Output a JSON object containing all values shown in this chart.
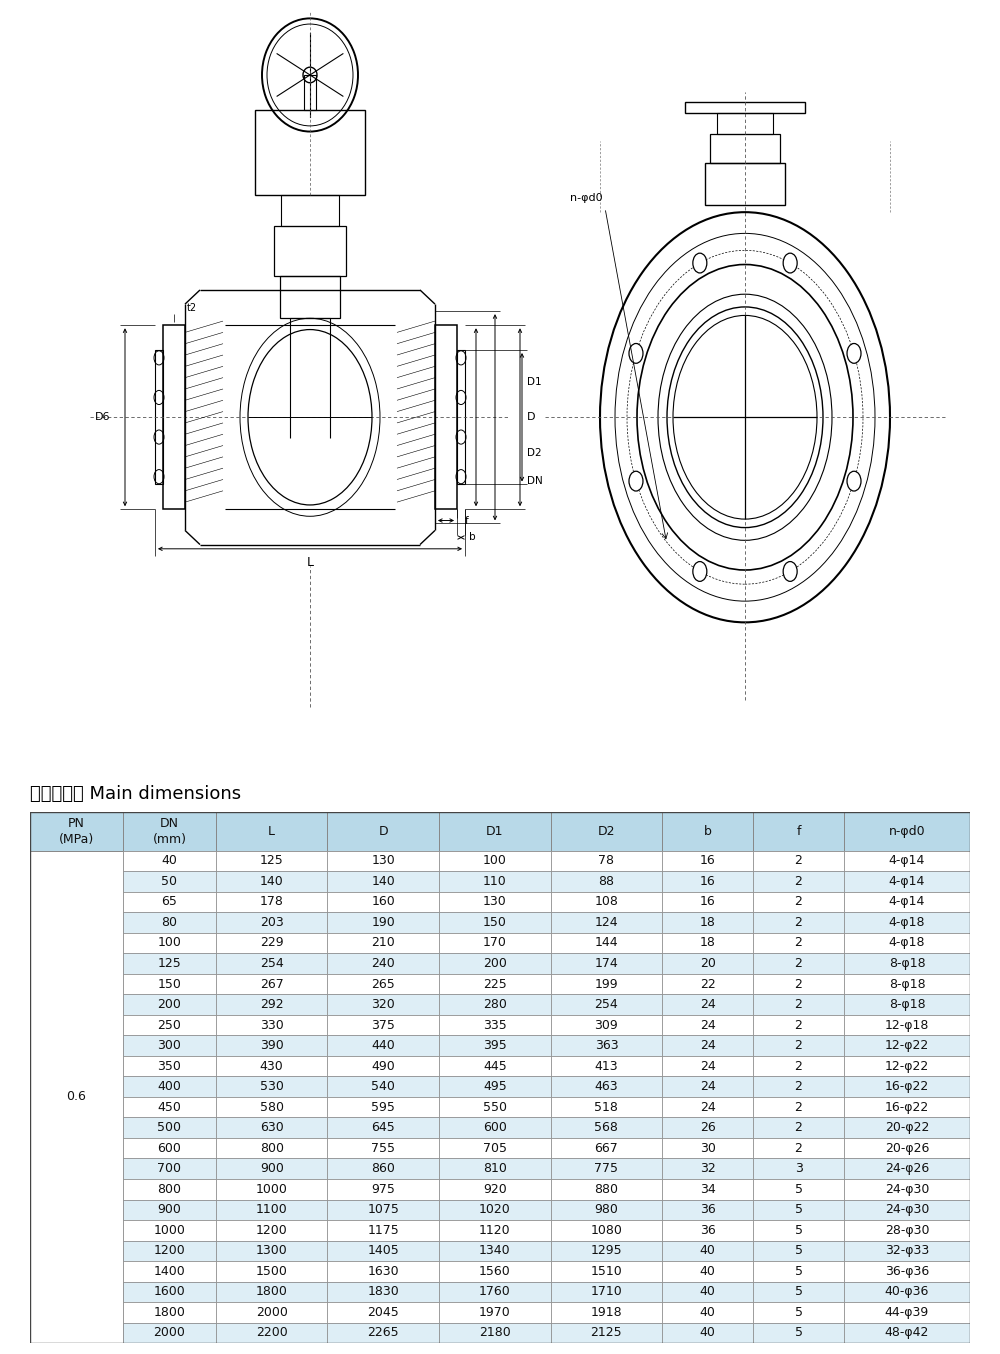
{
  "title": "主要尺寸表 Main dimensions",
  "title_fontsize": 13,
  "headers": [
    "PN\n(MPa)",
    "DN\n(mm)",
    "L",
    "D",
    "D1",
    "D2",
    "b",
    "f",
    "n-φd0"
  ],
  "pn_label": "0.6",
  "rows": [
    [
      "40",
      "125",
      "130",
      "100",
      "78",
      "16",
      "2",
      "4-φ14"
    ],
    [
      "50",
      "140",
      "140",
      "110",
      "88",
      "16",
      "2",
      "4-φ14"
    ],
    [
      "65",
      "178",
      "160",
      "130",
      "108",
      "16",
      "2",
      "4-φ14"
    ],
    [
      "80",
      "203",
      "190",
      "150",
      "124",
      "18",
      "2",
      "4-φ18"
    ],
    [
      "100",
      "229",
      "210",
      "170",
      "144",
      "18",
      "2",
      "4-φ18"
    ],
    [
      "125",
      "254",
      "240",
      "200",
      "174",
      "20",
      "2",
      "8-φ18"
    ],
    [
      "150",
      "267",
      "265",
      "225",
      "199",
      "22",
      "2",
      "8-φ18"
    ],
    [
      "200",
      "292",
      "320",
      "280",
      "254",
      "24",
      "2",
      "8-φ18"
    ],
    [
      "250",
      "330",
      "375",
      "335",
      "309",
      "24",
      "2",
      "12-φ18"
    ],
    [
      "300",
      "390",
      "440",
      "395",
      "363",
      "24",
      "2",
      "12-φ22"
    ],
    [
      "350",
      "430",
      "490",
      "445",
      "413",
      "24",
      "2",
      "12-φ22"
    ],
    [
      "400",
      "530",
      "540",
      "495",
      "463",
      "24",
      "2",
      "16-φ22"
    ],
    [
      "450",
      "580",
      "595",
      "550",
      "518",
      "24",
      "2",
      "16-φ22"
    ],
    [
      "500",
      "630",
      "645",
      "600",
      "568",
      "26",
      "2",
      "20-φ22"
    ],
    [
      "600",
      "800",
      "755",
      "705",
      "667",
      "30",
      "2",
      "20-φ26"
    ],
    [
      "700",
      "900",
      "860",
      "810",
      "775",
      "32",
      "3",
      "24-φ26"
    ],
    [
      "800",
      "1000",
      "975",
      "920",
      "880",
      "34",
      "5",
      "24-φ30"
    ],
    [
      "900",
      "1100",
      "1075",
      "1020",
      "980",
      "36",
      "5",
      "24-φ30"
    ],
    [
      "1000",
      "1200",
      "1175",
      "1120",
      "1080",
      "36",
      "5",
      "28-φ30"
    ],
    [
      "1200",
      "1300",
      "1405",
      "1340",
      "1295",
      "40",
      "5",
      "32-φ33"
    ],
    [
      "1400",
      "1500",
      "1630",
      "1560",
      "1510",
      "40",
      "5",
      "36-φ36"
    ],
    [
      "1600",
      "1800",
      "1830",
      "1760",
      "1710",
      "40",
      "5",
      "40-φ36"
    ],
    [
      "1800",
      "2000",
      "2045",
      "1970",
      "1918",
      "40",
      "5",
      "44-φ39"
    ],
    [
      "2000",
      "2200",
      "2265",
      "2180",
      "2125",
      "40",
      "5",
      "48-φ42"
    ]
  ],
  "header_bg": "#b8d9e8",
  "row_bg_odd": "#ffffff",
  "row_bg_even": "#deeef6",
  "border_color": "#888888",
  "text_color": "#111111",
  "header_text_color": "#111111",
  "font_size": 9.0,
  "header_font_size": 9.0
}
